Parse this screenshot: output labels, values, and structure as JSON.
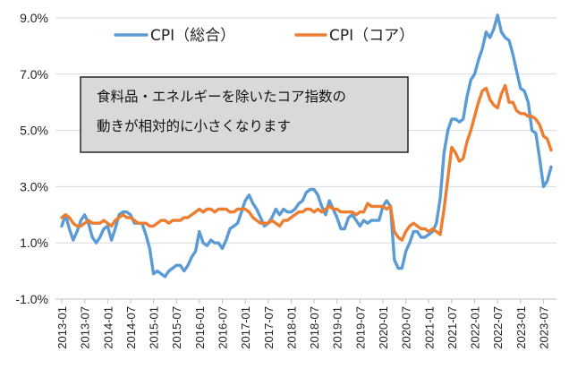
{
  "chart_data": {
    "type": "line",
    "ylim": [
      -1.0,
      9.0
    ],
    "yticks": [
      "-1.0%",
      "1.0%",
      "3.0%",
      "5.0%",
      "7.0%",
      "9.0%"
    ],
    "ytick_values": [
      -1,
      1,
      3,
      5,
      7,
      9
    ],
    "xticks": [
      "2013-01",
      "2013-07",
      "2014-01",
      "2014-07",
      "2015-01",
      "2015-07",
      "2016-01",
      "2016-07",
      "2017-01",
      "2017-07",
      "2018-01",
      "2018-07",
      "2019-01",
      "2019-07",
      "2020-01",
      "2020-07",
      "2021-01",
      "2021-07",
      "2022-01",
      "2022-07",
      "2023-01",
      "2023-07"
    ],
    "legend_placement": "top",
    "grid": "horizontal",
    "annotation": [
      "食料品・エネルギーを除いたコア指数の",
      "動きが相対的に小さくなります"
    ],
    "series": [
      {
        "name": "CPI（総合）",
        "color": "#5b9bd5",
        "values": [
          1.6,
          2.0,
          1.5,
          1.1,
          1.4,
          1.8,
          2.0,
          1.7,
          1.2,
          1.0,
          1.2,
          1.5,
          1.6,
          1.1,
          1.5,
          2.0,
          2.1,
          2.1,
          2.0,
          1.7,
          1.7,
          1.7,
          1.3,
          0.8,
          -0.1,
          0.0,
          -0.1,
          -0.2,
          0.0,
          0.1,
          0.2,
          0.2,
          0.0,
          0.2,
          0.5,
          0.7,
          1.4,
          1.0,
          0.9,
          1.1,
          1.0,
          1.0,
          0.8,
          1.1,
          1.5,
          1.6,
          1.7,
          2.1,
          2.5,
          2.7,
          2.4,
          2.2,
          1.9,
          1.6,
          1.7,
          1.9,
          2.2,
          2.0,
          2.2,
          2.1,
          2.1,
          2.2,
          2.4,
          2.5,
          2.8,
          2.9,
          2.9,
          2.7,
          2.3,
          2.0,
          2.5,
          2.2,
          1.9,
          1.5,
          1.5,
          1.9,
          2.0,
          1.8,
          1.6,
          1.8,
          1.7,
          1.8,
          1.8,
          1.8,
          2.3,
          2.5,
          2.3,
          0.4,
          0.1,
          0.1,
          0.7,
          1.0,
          1.4,
          1.4,
          1.2,
          1.2,
          1.3,
          1.4,
          1.7,
          2.6,
          4.2,
          5.0,
          5.4,
          5.4,
          5.3,
          5.4,
          6.2,
          6.8,
          7.0,
          7.5,
          7.9,
          8.5,
          8.3,
          8.6,
          9.1,
          8.5,
          8.3,
          8.2,
          7.7,
          7.1,
          6.5,
          6.4,
          6.0,
          5.0,
          4.9,
          4.0,
          3.0,
          3.2,
          3.7
        ]
      },
      {
        "name": "CPI（コア）",
        "color": "#ed7d31",
        "values": [
          1.9,
          2.0,
          1.9,
          1.7,
          1.6,
          1.6,
          1.7,
          1.8,
          1.7,
          1.7,
          1.7,
          1.8,
          1.7,
          1.6,
          1.8,
          1.9,
          2.0,
          1.9,
          1.9,
          1.8,
          1.7,
          1.7,
          1.7,
          1.6,
          1.6,
          1.7,
          1.8,
          1.8,
          1.7,
          1.8,
          1.8,
          1.8,
          1.9,
          1.9,
          2.0,
          2.1,
          2.2,
          2.1,
          2.2,
          2.2,
          2.1,
          2.2,
          2.2,
          2.2,
          2.1,
          2.1,
          2.2,
          2.2,
          2.2,
          2.1,
          1.9,
          1.8,
          1.7,
          1.7,
          1.7,
          1.8,
          1.7,
          1.6,
          1.8,
          1.8,
          1.9,
          2.0,
          2.1,
          2.1,
          2.2,
          2.2,
          2.1,
          2.2,
          2.1,
          2.2,
          2.3,
          2.2,
          2.2,
          2.1,
          2.1,
          2.1,
          2.1,
          2.0,
          2.1,
          2.1,
          2.4,
          2.3,
          2.3,
          2.3,
          2.3,
          2.2,
          2.3,
          1.4,
          1.2,
          1.1,
          1.4,
          1.6,
          1.7,
          1.6,
          1.5,
          1.5,
          1.4,
          1.5,
          1.4,
          1.3,
          2.2,
          3.3,
          4.4,
          4.2,
          3.9,
          4.0,
          4.6,
          5.0,
          5.5,
          6.0,
          6.4,
          6.5,
          6.1,
          5.9,
          5.8,
          6.3,
          6.6,
          6.0,
          6.0,
          5.7,
          5.6,
          5.6,
          5.5,
          5.5,
          5.4,
          5.2,
          4.8,
          4.7,
          4.3
        ]
      }
    ]
  }
}
